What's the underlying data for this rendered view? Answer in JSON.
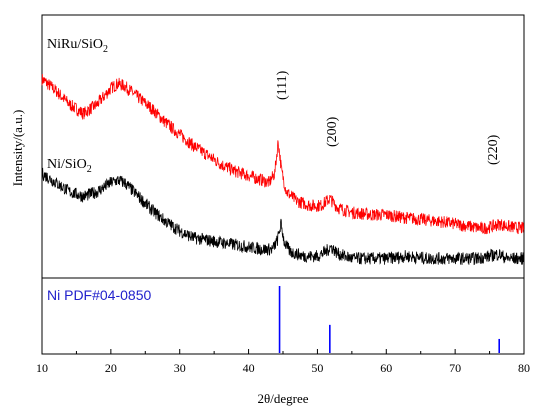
{
  "chart_data": {
    "type": "line",
    "xlabel": "2θ/degree",
    "ylabel": "Intensity/(a.u.)",
    "xlim": [
      10,
      80
    ],
    "x_ticks": [
      "10",
      "20",
      "30",
      "40",
      "50",
      "60",
      "70",
      "80"
    ],
    "series": [
      {
        "name_main": "NiRu/SiO",
        "name_sub": "2",
        "color": "#ff0000",
        "x": [
          10,
          12,
          14,
          16,
          18,
          20,
          21,
          22,
          24,
          26,
          28,
          30,
          32,
          34,
          36,
          38,
          40,
          42,
          43,
          43.8,
          44.3,
          44.8,
          45.5,
          47,
          49,
          50.5,
          51.8,
          53,
          55,
          58,
          60,
          62,
          65,
          68,
          70,
          72,
          74,
          75.5,
          76.5,
          77.5,
          80
        ],
        "y": [
          0.83,
          0.78,
          0.72,
          0.68,
          0.72,
          0.79,
          0.81,
          0.8,
          0.75,
          0.7,
          0.64,
          0.59,
          0.54,
          0.5,
          0.46,
          0.43,
          0.41,
          0.39,
          0.38,
          0.42,
          0.56,
          0.43,
          0.34,
          0.3,
          0.28,
          0.28,
          0.31,
          0.27,
          0.25,
          0.24,
          0.24,
          0.23,
          0.22,
          0.21,
          0.2,
          0.19,
          0.18,
          0.19,
          0.2,
          0.19,
          0.18
        ]
      },
      {
        "name_main": "Ni/SiO",
        "name_sub": "2",
        "color": "#000000",
        "x": [
          10,
          12,
          14,
          16,
          18,
          20,
          21,
          22,
          24,
          26,
          28,
          30,
          32,
          34,
          36,
          38,
          40,
          42,
          43.5,
          44.2,
          44.7,
          45.2,
          46,
          48,
          50,
          51.2,
          52,
          53,
          55,
          58,
          60,
          63,
          66,
          70,
          73,
          75,
          76.3,
          77.5,
          80
        ],
        "y": [
          0.42,
          0.38,
          0.34,
          0.32,
          0.34,
          0.38,
          0.39,
          0.38,
          0.32,
          0.26,
          0.21,
          0.17,
          0.14,
          0.13,
          0.12,
          0.11,
          0.1,
          0.09,
          0.09,
          0.13,
          0.2,
          0.12,
          0.08,
          0.06,
          0.06,
          0.08,
          0.1,
          0.07,
          0.05,
          0.05,
          0.05,
          0.06,
          0.05,
          0.05,
          0.05,
          0.06,
          0.07,
          0.05,
          0.05
        ]
      }
    ],
    "peak_labels": [
      {
        "label": "(111)",
        "x": 44.5
      },
      {
        "label": "(200)",
        "x": 51.8
      },
      {
        "label": "(220)",
        "x": 76.4
      }
    ],
    "reference": {
      "label": "Ni PDF#04-0850",
      "color": "#0000ff",
      "label_color": "#2222cc",
      "lines": [
        {
          "x": 44.5,
          "intensity": 100
        },
        {
          "x": 51.8,
          "intensity": 42
        },
        {
          "x": 76.4,
          "intensity": 21
        }
      ]
    }
  }
}
